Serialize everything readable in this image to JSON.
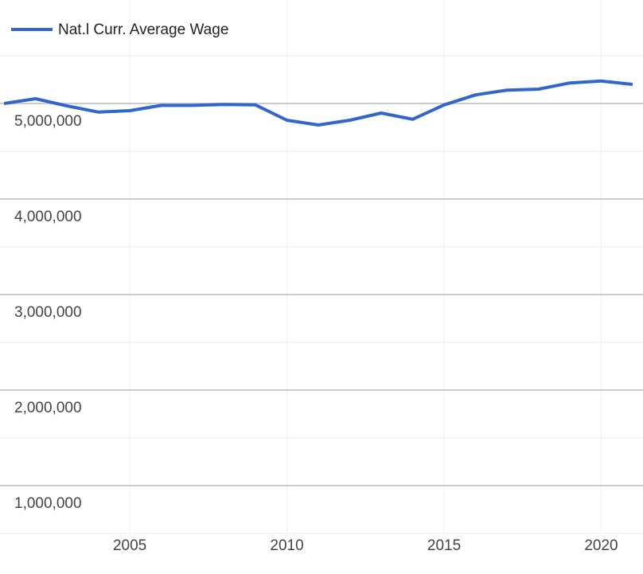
{
  "chart_data": {
    "type": "line",
    "x": [
      2001,
      2002,
      2003,
      2004,
      2005,
      2006,
      2007,
      2008,
      2009,
      2010,
      2011,
      2012,
      2013,
      2014,
      2015,
      2016,
      2017,
      2018,
      2019,
      2020,
      2021
    ],
    "series": [
      {
        "name": "Nat.l Curr. Average Wage",
        "color": "#3366cc",
        "values": [
          5000000,
          5050000,
          4975000,
          4910000,
          4925000,
          4980000,
          4980000,
          4990000,
          4985000,
          4825000,
          4775000,
          4825000,
          4900000,
          4835000,
          4985000,
          5090000,
          5140000,
          5150000,
          5215000,
          5235000,
          5200000
        ]
      }
    ],
    "xlim": [
      2000.87,
      2021.33
    ],
    "xticks": [
      2005,
      2010,
      2015,
      2020
    ],
    "ylim": [
      0,
      6000000
    ],
    "yticks": [
      {
        "value": 1000000,
        "label": "1,000,000"
      },
      {
        "value": 2000000,
        "label": "2,000,000"
      },
      {
        "value": 3000000,
        "label": "3,000,000"
      },
      {
        "value": 4000000,
        "label": "4,000,000"
      },
      {
        "value": 5000000,
        "label": "5,000,000"
      }
    ],
    "minor_yticks": [
      500000,
      1500000,
      2500000,
      3500000,
      4500000,
      5500000
    ],
    "grid": true,
    "legend": "top-left"
  }
}
